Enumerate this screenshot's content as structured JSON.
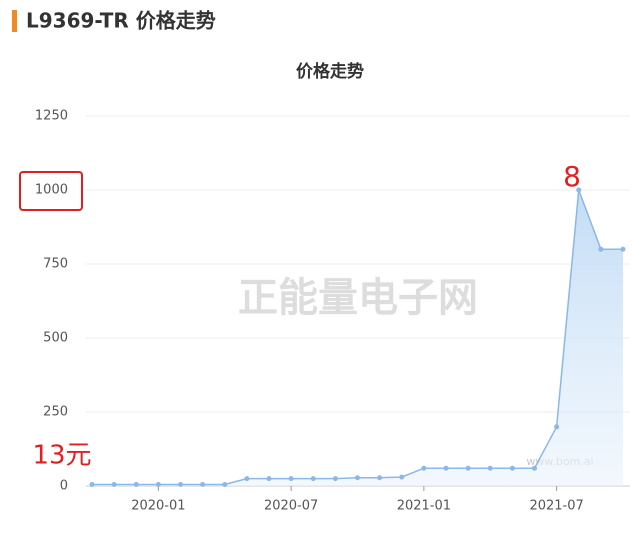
{
  "header": {
    "title": "L9369-TR 价格走势"
  },
  "chart_data": {
    "type": "area",
    "title": "价格走势",
    "categories": [
      null,
      null,
      null,
      "2020-01",
      null,
      null,
      null,
      null,
      null,
      "2020-07",
      null,
      null,
      null,
      null,
      null,
      "2021-01",
      null,
      null,
      null,
      null,
      null,
      "2021-07",
      null,
      null,
      null
    ],
    "values": [
      5,
      5,
      5,
      5,
      5,
      5,
      5,
      25,
      25,
      25,
      25,
      25,
      28,
      28,
      30,
      60,
      60,
      60,
      60,
      60,
      60,
      200,
      1000,
      800,
      800
    ],
    "color": "#8ab8e8",
    "ylim": [
      0,
      1250
    ],
    "yticks": [
      0,
      250,
      500,
      750,
      1000,
      1250
    ],
    "grid": true,
    "watermark": [
      "正能量电子网",
      "www.bom.ai"
    ],
    "annotations": [
      "8",
      "13元"
    ]
  }
}
